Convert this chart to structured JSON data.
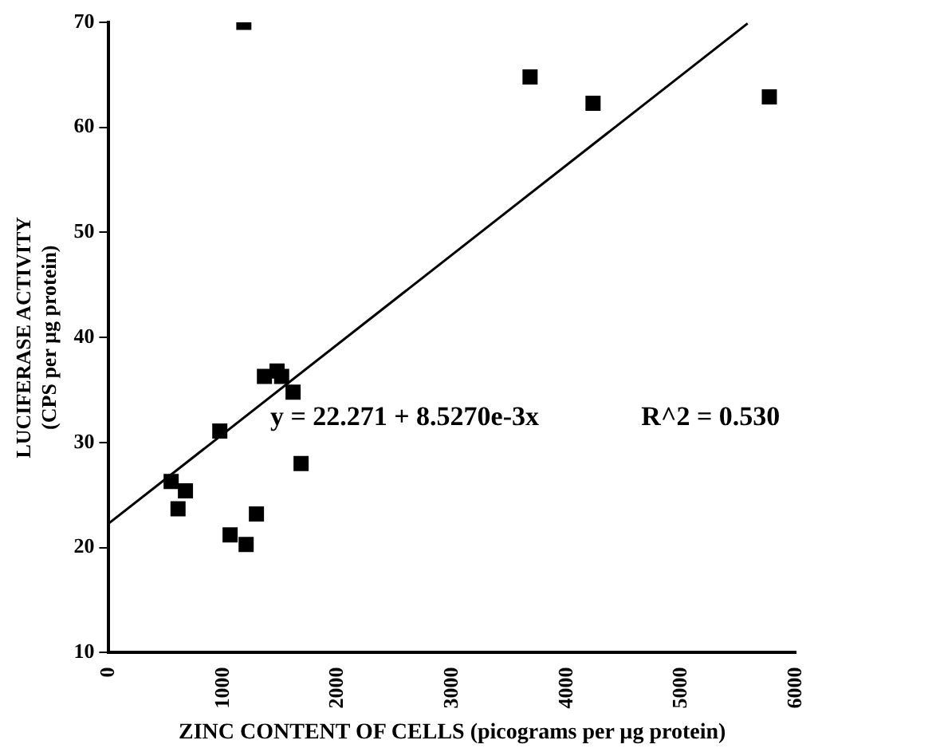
{
  "chart_data": {
    "type": "scatter",
    "xlabel": "ZINC CONTENT OF CELLS (picograms per µg protein)",
    "ylabel": "LUCIFERASE ACTIVITY\n(CPS per µg protein)",
    "xlim": [
      0,
      6000
    ],
    "xticks": [
      0,
      1000,
      2000,
      3000,
      4000,
      5000,
      6000
    ],
    "ylim": [
      10,
      70
    ],
    "yticks": [
      10,
      20,
      30,
      40,
      50,
      60,
      70
    ],
    "grid": false,
    "legend": false,
    "marker": "square",
    "series": [
      {
        "color": "#000000",
        "x": [
          1180,
          3680,
          4230,
          5770,
          545,
          670,
          605,
          970,
          1060,
          1200,
          1290,
          1360,
          1470,
          1510,
          1610,
          1680
        ],
        "values": [
          70,
          64.8,
          62.3,
          62.9,
          26.3,
          25.4,
          23.7,
          31.1,
          21.2,
          20.3,
          23.2,
          36.3,
          36.8,
          36.3,
          34.8,
          28.0
        ]
      },
      {
        "type": "line",
        "marker": "none",
        "color": "#000000",
        "x": [
          0,
          5580
        ],
        "values": [
          22.3,
          69.9
        ]
      }
    ],
    "annotations": [
      "y = 22.271 + 8.5270e-3x",
      "R^2 = 0.530"
    ]
  }
}
